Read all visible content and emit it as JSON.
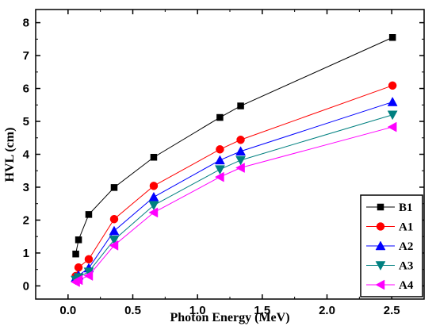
{
  "chart_data": {
    "type": "line",
    "xlabel": "Photon Energy (MeV)",
    "ylabel": "HVL (cm)",
    "xlim": [
      -0.25,
      2.75
    ],
    "ylim": [
      -0.4,
      8.4
    ],
    "xticks": [
      0.0,
      0.5,
      1.0,
      1.5,
      2.0,
      2.5
    ],
    "xtick_labels": [
      "0.0",
      "0.5",
      "1.0",
      "1.5",
      "2.0",
      "2.5"
    ],
    "yticks": [
      0,
      1,
      2,
      3,
      4,
      5,
      6,
      7,
      8
    ],
    "ytick_labels": [
      "0",
      "1",
      "2",
      "3",
      "4",
      "5",
      "6",
      "7",
      "8"
    ],
    "grid": false,
    "legend_position": "bottom-right",
    "x": [
      0.0595,
      0.081,
      0.16,
      0.356,
      0.662,
      1.173,
      1.333,
      2.506
    ],
    "series": [
      {
        "name": "B1",
        "color": "#000000",
        "marker": "square",
        "values": [
          0.97,
          1.4,
          2.17,
          2.99,
          3.91,
          5.12,
          5.47,
          7.55
        ]
      },
      {
        "name": "A1",
        "color": "#ff0000",
        "marker": "circle",
        "values": [
          0.3,
          0.56,
          0.81,
          2.03,
          3.04,
          4.15,
          4.44,
          6.09
        ]
      },
      {
        "name": "A2",
        "color": "#0000ff",
        "marker": "triangle-up",
        "values": [
          0.25,
          0.32,
          0.54,
          1.67,
          2.7,
          3.82,
          4.09,
          5.59
        ]
      },
      {
        "name": "A3",
        "color": "#008080",
        "marker": "triangle-down",
        "values": [
          0.18,
          0.26,
          0.43,
          1.4,
          2.45,
          3.54,
          3.82,
          5.2
        ]
      },
      {
        "name": "A4",
        "color": "#ff00ff",
        "marker": "triangle-left",
        "values": [
          0.12,
          0.18,
          0.31,
          1.23,
          2.23,
          3.31,
          3.59,
          4.83
        ]
      }
    ]
  }
}
